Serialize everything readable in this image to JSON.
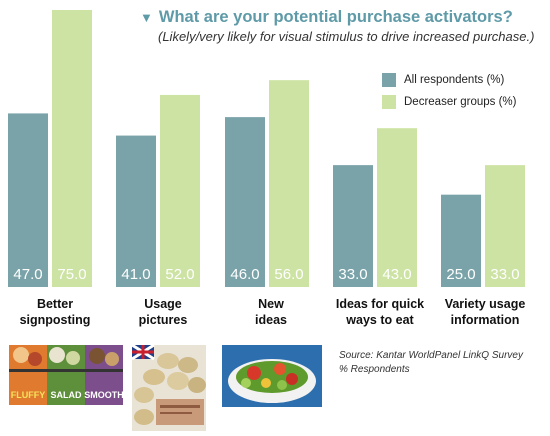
{
  "header": {
    "title": "What are your potential purchase activators?",
    "subtitle": "(Likely/very likely for visual stimulus to drive increased purchase.)"
  },
  "source": {
    "line1": "Source: Kantar WorldPanel LinkQ Survey",
    "line2": "% Respondents"
  },
  "colors": {
    "all_respondents": "#7aa3a9",
    "decreaser_groups": "#cde3a3",
    "title": "#5e9aa7"
  },
  "images": [
    {
      "icon": "packaged-salad-products-photo",
      "labels": [
        "FLUFFY",
        "SALAD",
        "SMOOTH"
      ]
    },
    {
      "icon": "potato-bag-photo",
      "labels": []
    },
    {
      "icon": "salad-bowl-photo",
      "labels": []
    }
  ],
  "chart_data": {
    "type": "bar",
    "title": "What are your potential purchase activators?",
    "subtitle": "(Likely/very likely for visual stimulus to drive increased purchase.)",
    "categories": [
      [
        "Better",
        "signposting"
      ],
      [
        "Usage",
        "pictures"
      ],
      [
        "New",
        "ideas"
      ],
      [
        "Ideas for quick",
        "ways to eat"
      ],
      [
        "Variety usage",
        "information"
      ]
    ],
    "series": [
      {
        "name": "All respondents (%)",
        "color": "#7aa3a9",
        "values": [
          47.0,
          41.0,
          46.0,
          33.0,
          25.0
        ],
        "labels": [
          "47.0",
          "41.0",
          "46.0",
          "33.0",
          "25.0"
        ]
      },
      {
        "name": "Decreaser groups (%)",
        "color": "#cde3a3",
        "values": [
          75.0,
          52.0,
          56.0,
          43.0,
          33.0
        ],
        "labels": [
          "75.0",
          "52.0",
          "56.0",
          "43.0",
          "33.0"
        ]
      }
    ],
    "ylim": [
      0,
      75
    ],
    "grid": false,
    "legend": "top-right"
  }
}
